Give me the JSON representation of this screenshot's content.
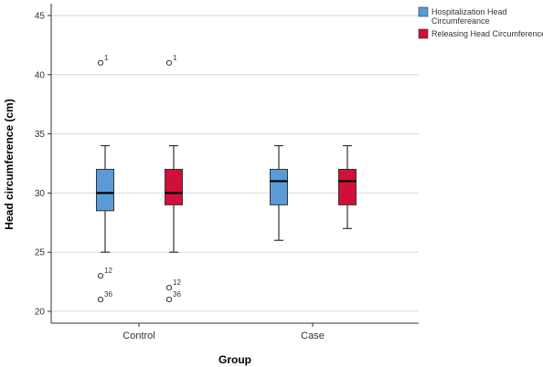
{
  "chart_data": {
    "type": "boxplot",
    "xlabel": "Group",
    "ylabel": "Head circumference (cm)",
    "ylim": [
      19,
      46
    ],
    "yticks": [
      20,
      25,
      30,
      35,
      40,
      45
    ],
    "categories": [
      "Control",
      "Case"
    ],
    "grid": "horizontal",
    "legend_position": "top-right",
    "series": [
      {
        "name_lines": [
          "Hospitalization Head",
          "Circumfereance"
        ],
        "color": "#5b9bd5",
        "boxes": [
          {
            "category": "Control",
            "min": 25,
            "q1": 28.5,
            "median": 30,
            "q3": 32,
            "max": 34,
            "outliers": [
              {
                "value": 41,
                "label": "1"
              },
              {
                "value": 23,
                "label": "12"
              },
              {
                "value": 21,
                "label": "36"
              }
            ]
          },
          {
            "category": "Case",
            "min": 26,
            "q1": 29,
            "median": 31,
            "q3": 32,
            "max": 34,
            "outliers": []
          }
        ]
      },
      {
        "name_lines": [
          "Releasing Head Circumference"
        ],
        "color": "#d0103a",
        "boxes": [
          {
            "category": "Control",
            "min": 25,
            "q1": 29,
            "median": 30,
            "q3": 32,
            "max": 34,
            "outliers": [
              {
                "value": 41,
                "label": "1"
              },
              {
                "value": 22,
                "label": "12"
              },
              {
                "value": 21,
                "label": "36"
              }
            ]
          },
          {
            "category": "Case",
            "min": 27,
            "q1": 29,
            "median": 31,
            "q3": 32,
            "max": 34,
            "outliers": []
          }
        ]
      }
    ]
  }
}
